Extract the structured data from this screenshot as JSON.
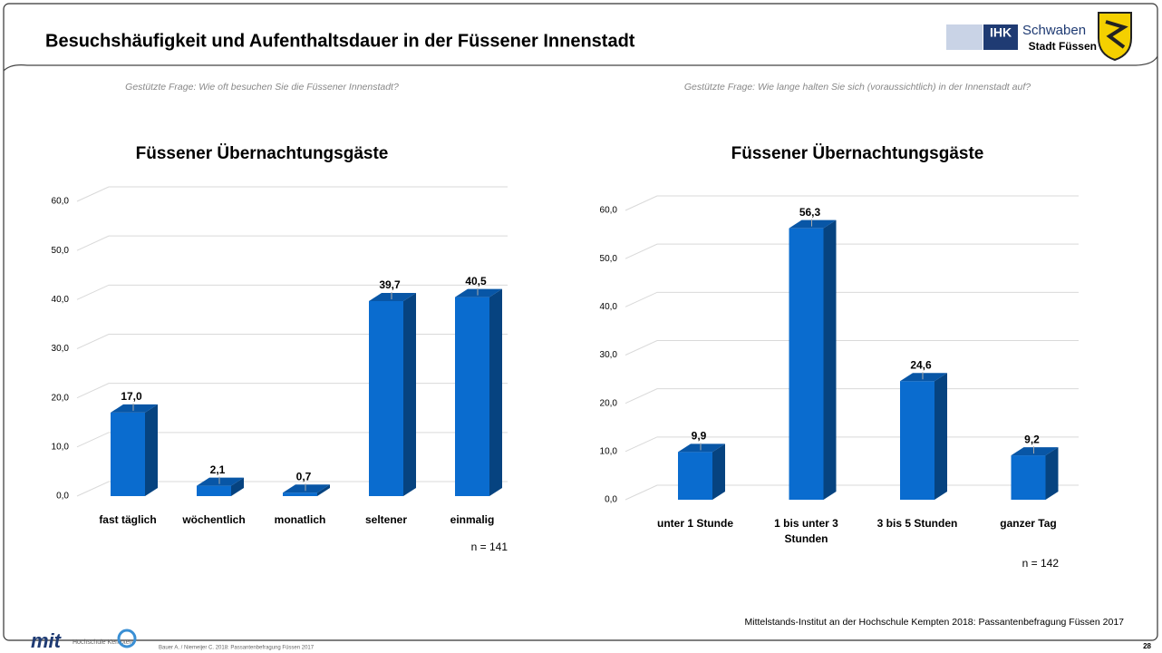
{
  "header": {
    "title": "Besuchshäufigkeit und Aufenthaltsdauer in der Füssener Innenstadt",
    "logo_ihk": "IHK",
    "logo_schwaben": "Schwaben",
    "logo_city": "Stadt Füssen"
  },
  "questions": [
    "Gestützte Frage: Wie oft besuchen Sie die Füssener Innenstadt?",
    "Gestützte Frage: Wie lange halten Sie sich (voraussichtlich) in der Innenstadt auf?"
  ],
  "chart_data": [
    {
      "type": "bar",
      "title": "Füssener Übernachtungsgäste",
      "categories": [
        "fast täglich",
        "wöchentlich",
        "monatlich",
        "seltener",
        "einmalig"
      ],
      "values": [
        17.0,
        2.1,
        0.7,
        39.7,
        40.5
      ],
      "value_labels": [
        "17,0",
        "2,1",
        "0,7",
        "39,7",
        "40,5"
      ],
      "color": "#0a6ccf",
      "ylim": [
        0,
        60
      ],
      "yticks": [
        {
          "value": 0,
          "label": "0,0"
        },
        {
          "value": 10,
          "label": "10,0"
        },
        {
          "value": 20,
          "label": "20,0"
        },
        {
          "value": 30,
          "label": "30,0"
        },
        {
          "value": 40,
          "label": "40,0"
        },
        {
          "value": 50,
          "label": "50,0"
        },
        {
          "value": 60,
          "label": "60,0"
        }
      ],
      "grid": true,
      "annotation": "n = 141"
    },
    {
      "type": "bar",
      "title": "Füssener Übernachtungsgäste",
      "categories": [
        "unter 1 Stunde",
        "1 bis unter 3 Stunden",
        "3 bis 5 Stunden",
        "ganzer Tag"
      ],
      "values": [
        9.9,
        56.3,
        24.6,
        9.2
      ],
      "value_labels": [
        "9,9",
        "56,3",
        "24,6",
        "9,2"
      ],
      "color": "#0a6ccf",
      "ylim": [
        0,
        60
      ],
      "yticks": [
        {
          "value": 0,
          "label": "0,0"
        },
        {
          "value": 10,
          "label": "10,0"
        },
        {
          "value": 20,
          "label": "20,0"
        },
        {
          "value": 30,
          "label": "30,0"
        },
        {
          "value": 40,
          "label": "40,0"
        },
        {
          "value": 50,
          "label": "50,0"
        },
        {
          "value": 60,
          "label": "60,0"
        }
      ],
      "grid": true,
      "annotation": "n = 142"
    }
  ],
  "footer": {
    "source": "Mittelstands-Institut an der Hochschule Kempten 2018: Passantenbefragung Füssen 2017",
    "citation": "Bauer A. / Niemeijer C. 2018: Passantenbefragung Füssen 2017",
    "page": "28",
    "logo_mit": "mit",
    "logo_hs": "Hochschule Kempten"
  }
}
